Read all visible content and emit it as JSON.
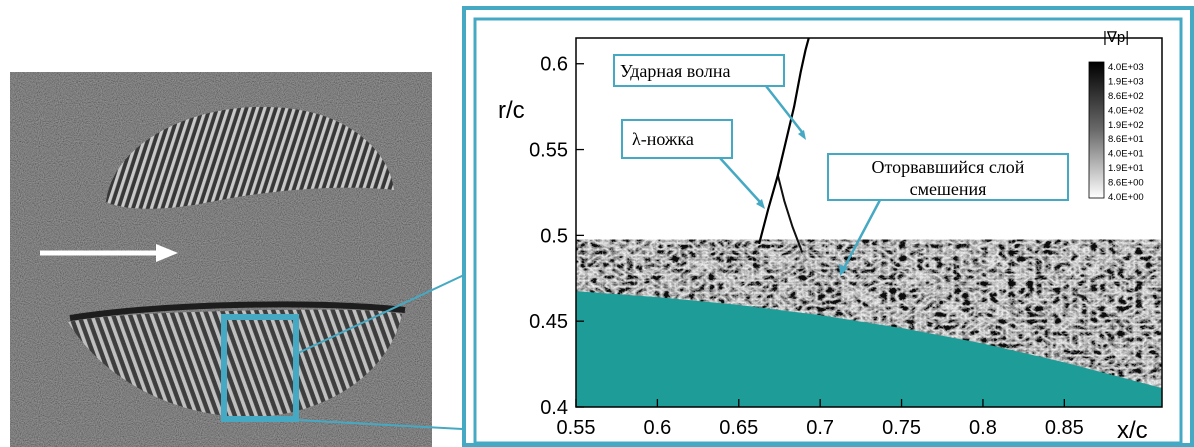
{
  "figure": {
    "arrow_icon": "flow-direction-arrow-icon",
    "accent_color": "#46a9c3",
    "airfoil_color": "#1e9c97"
  },
  "chart_data": {
    "type": "heatmap",
    "title": "",
    "xlabel": "x/c",
    "ylabel": "r/c",
    "xlim": [
      0.55,
      0.91
    ],
    "ylim": [
      0.4,
      0.615
    ],
    "x_ticks": [
      "0.55",
      "0.6",
      "0.65",
      "0.7",
      "0.75",
      "0.8",
      "0.85"
    ],
    "y_ticks": [
      "0.4",
      "0.45",
      "0.5",
      "0.55",
      "0.6"
    ],
    "x_tick_values": [
      0.55,
      0.6,
      0.65,
      0.7,
      0.75,
      0.8,
      0.85
    ],
    "y_tick_values": [
      0.4,
      0.45,
      0.5,
      0.55,
      0.6
    ],
    "colorbar": {
      "title": "|∇p|",
      "levels": [
        "4.0E+03",
        "1.9E+03",
        "8.6E+02",
        "4.0E+02",
        "1.9E+02",
        "8.6E+01",
        "4.0E+01",
        "1.9E+01",
        "8.6E+00",
        "4.0E+00"
      ]
    },
    "airfoil_surface": {
      "x": [
        0.55,
        0.6,
        0.65,
        0.7,
        0.75,
        0.8,
        0.85,
        0.91
      ],
      "y": [
        0.4675,
        0.464,
        0.4595,
        0.4535,
        0.446,
        0.437,
        0.426,
        0.411
      ]
    },
    "shock_wave": {
      "x": [
        0.6625,
        0.668,
        0.674,
        0.679,
        0.684,
        0.688,
        0.691,
        0.693
      ],
      "y": [
        0.495,
        0.515,
        0.535,
        0.555,
        0.575,
        0.595,
        0.608,
        0.615
      ]
    },
    "lambda_foot": {
      "x": [
        0.674,
        0.678,
        0.683,
        0.689
      ],
      "y": [
        0.535,
        0.52,
        0.505,
        0.49
      ]
    },
    "annotations": [
      {
        "text": "Ударная волна",
        "x": 0.687,
        "y": 0.55
      },
      {
        "text": "λ-ножка",
        "x": 0.668,
        "y": 0.517
      },
      {
        "text": "Оторвавшийся слой смешения",
        "x": 0.7,
        "y": 0.474
      }
    ]
  }
}
